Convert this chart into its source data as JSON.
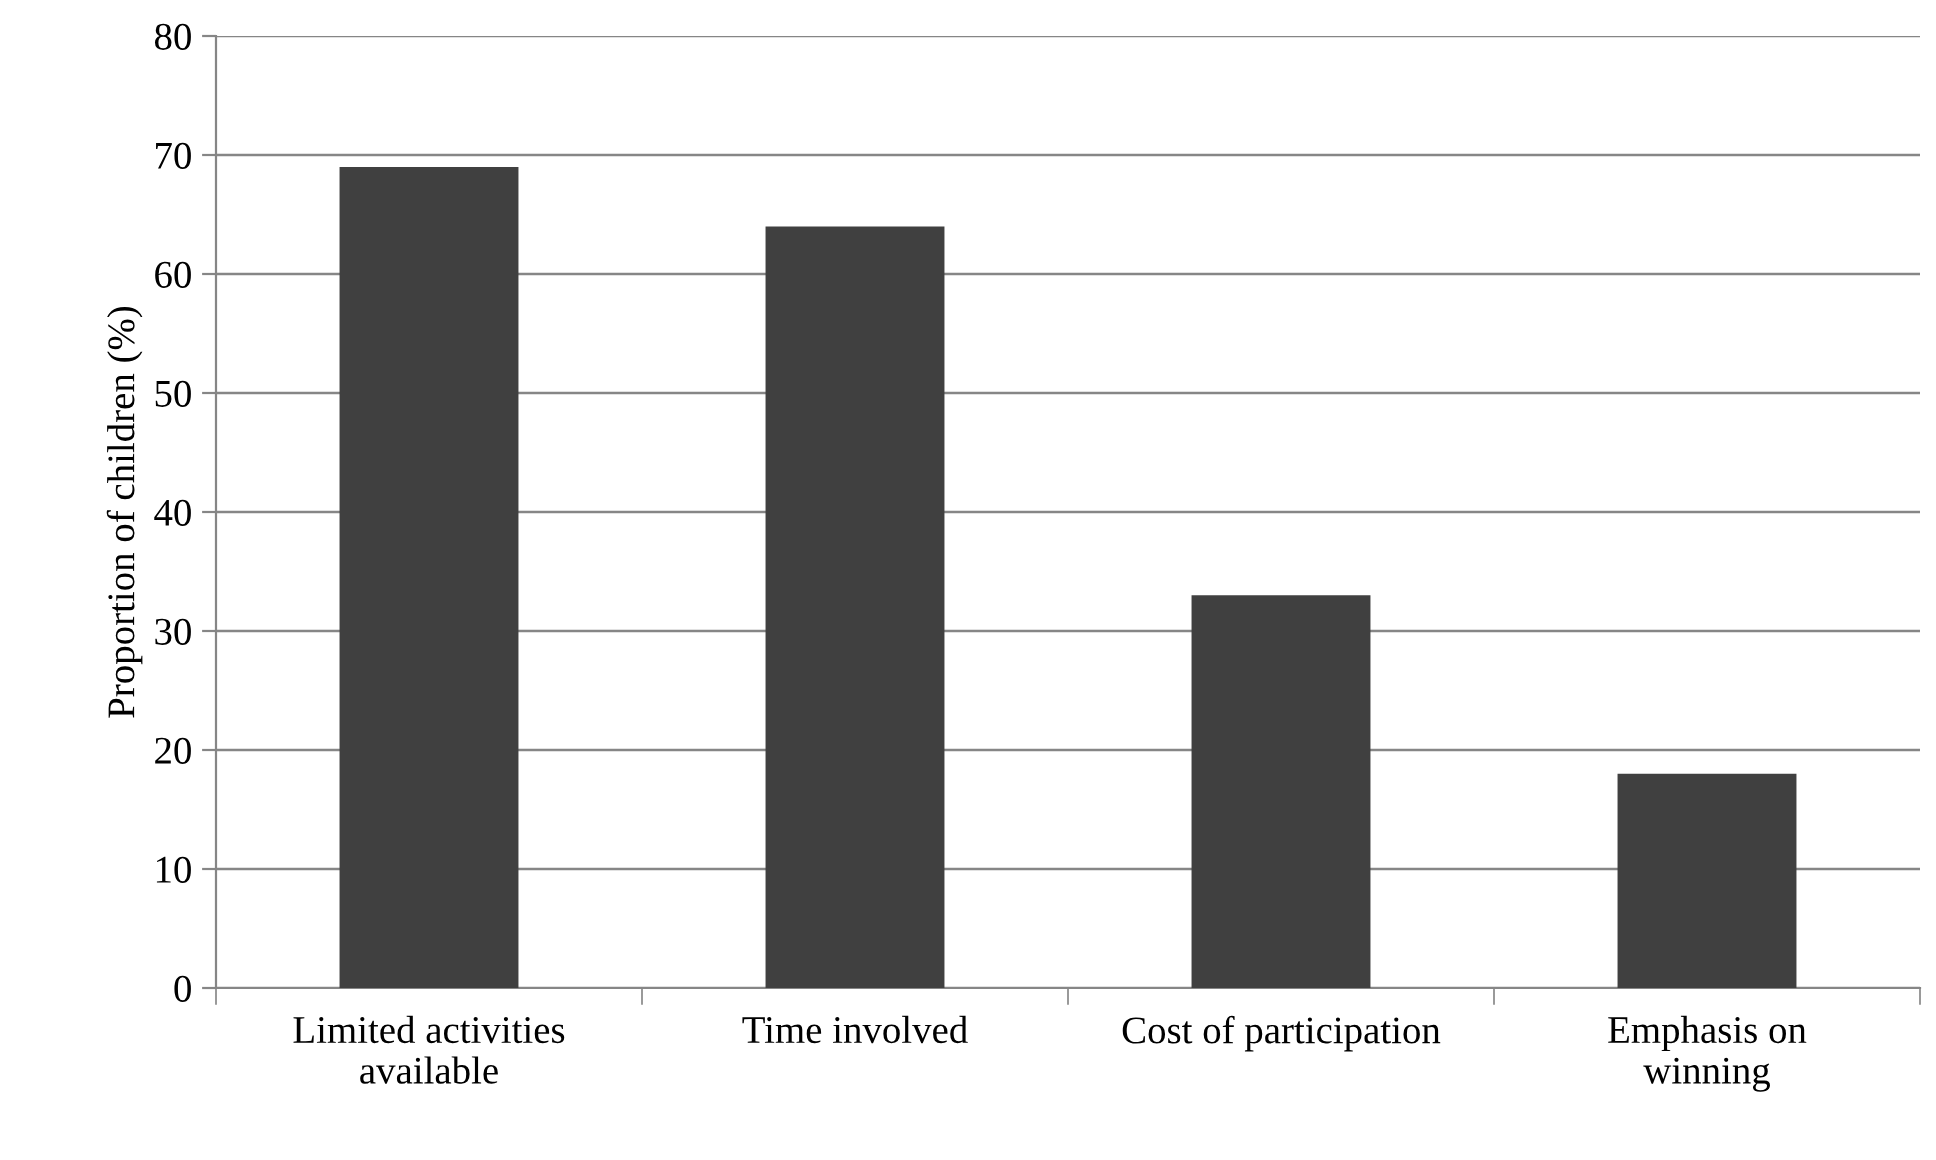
{
  "chart_data": {
    "type": "bar",
    "ylabel": "Proportion of children (%)",
    "categories": [
      "Limited activities\navailable",
      "Time involved",
      "Cost of participation",
      "Emphasis on\nwinning"
    ],
    "values": [
      69,
      64,
      33,
      18
    ],
    "color": "#404040",
    "ylim": [
      0,
      80
    ],
    "yticks": [
      0,
      10,
      20,
      30,
      40,
      50,
      60,
      70,
      80
    ],
    "grid": "y",
    "legend": false
  }
}
